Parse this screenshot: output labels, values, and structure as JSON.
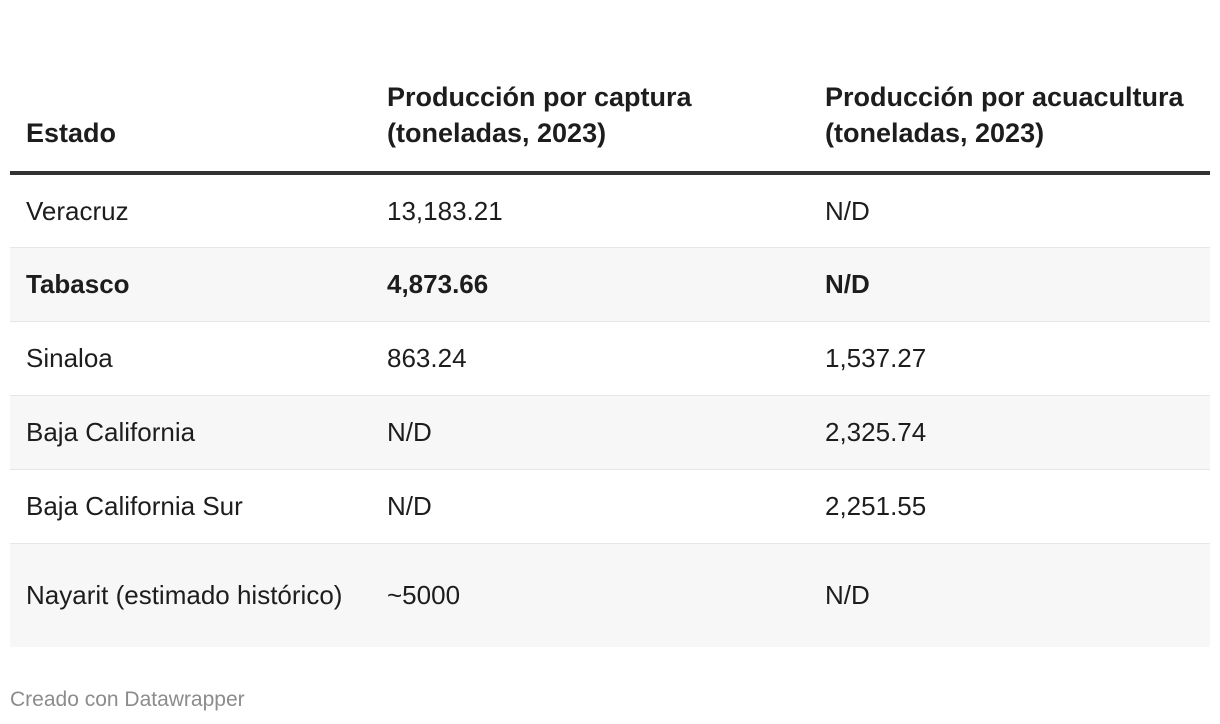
{
  "table": {
    "headers": [
      "Estado",
      "Producción por captura (toneladas, 2023)",
      "Producción por acuacultura (toneladas, 2023)"
    ],
    "rows": [
      [
        "Veracruz",
        "13,183.21",
        "N/D"
      ],
      [
        "Tabasco",
        "4,873.66",
        "N/D"
      ],
      [
        "Sinaloa",
        "863.24",
        "1,537.27"
      ],
      [
        "Baja California",
        "N/D",
        "2,325.74"
      ],
      [
        "Baja California Sur",
        "N/D",
        "2,251.55"
      ],
      [
        "Nayarit (estimado histórico)",
        "~5000",
        "N/D"
      ]
    ],
    "highlighted_row": "Tabasco"
  },
  "footer": {
    "credit": "Creado con Datawrapper"
  }
}
